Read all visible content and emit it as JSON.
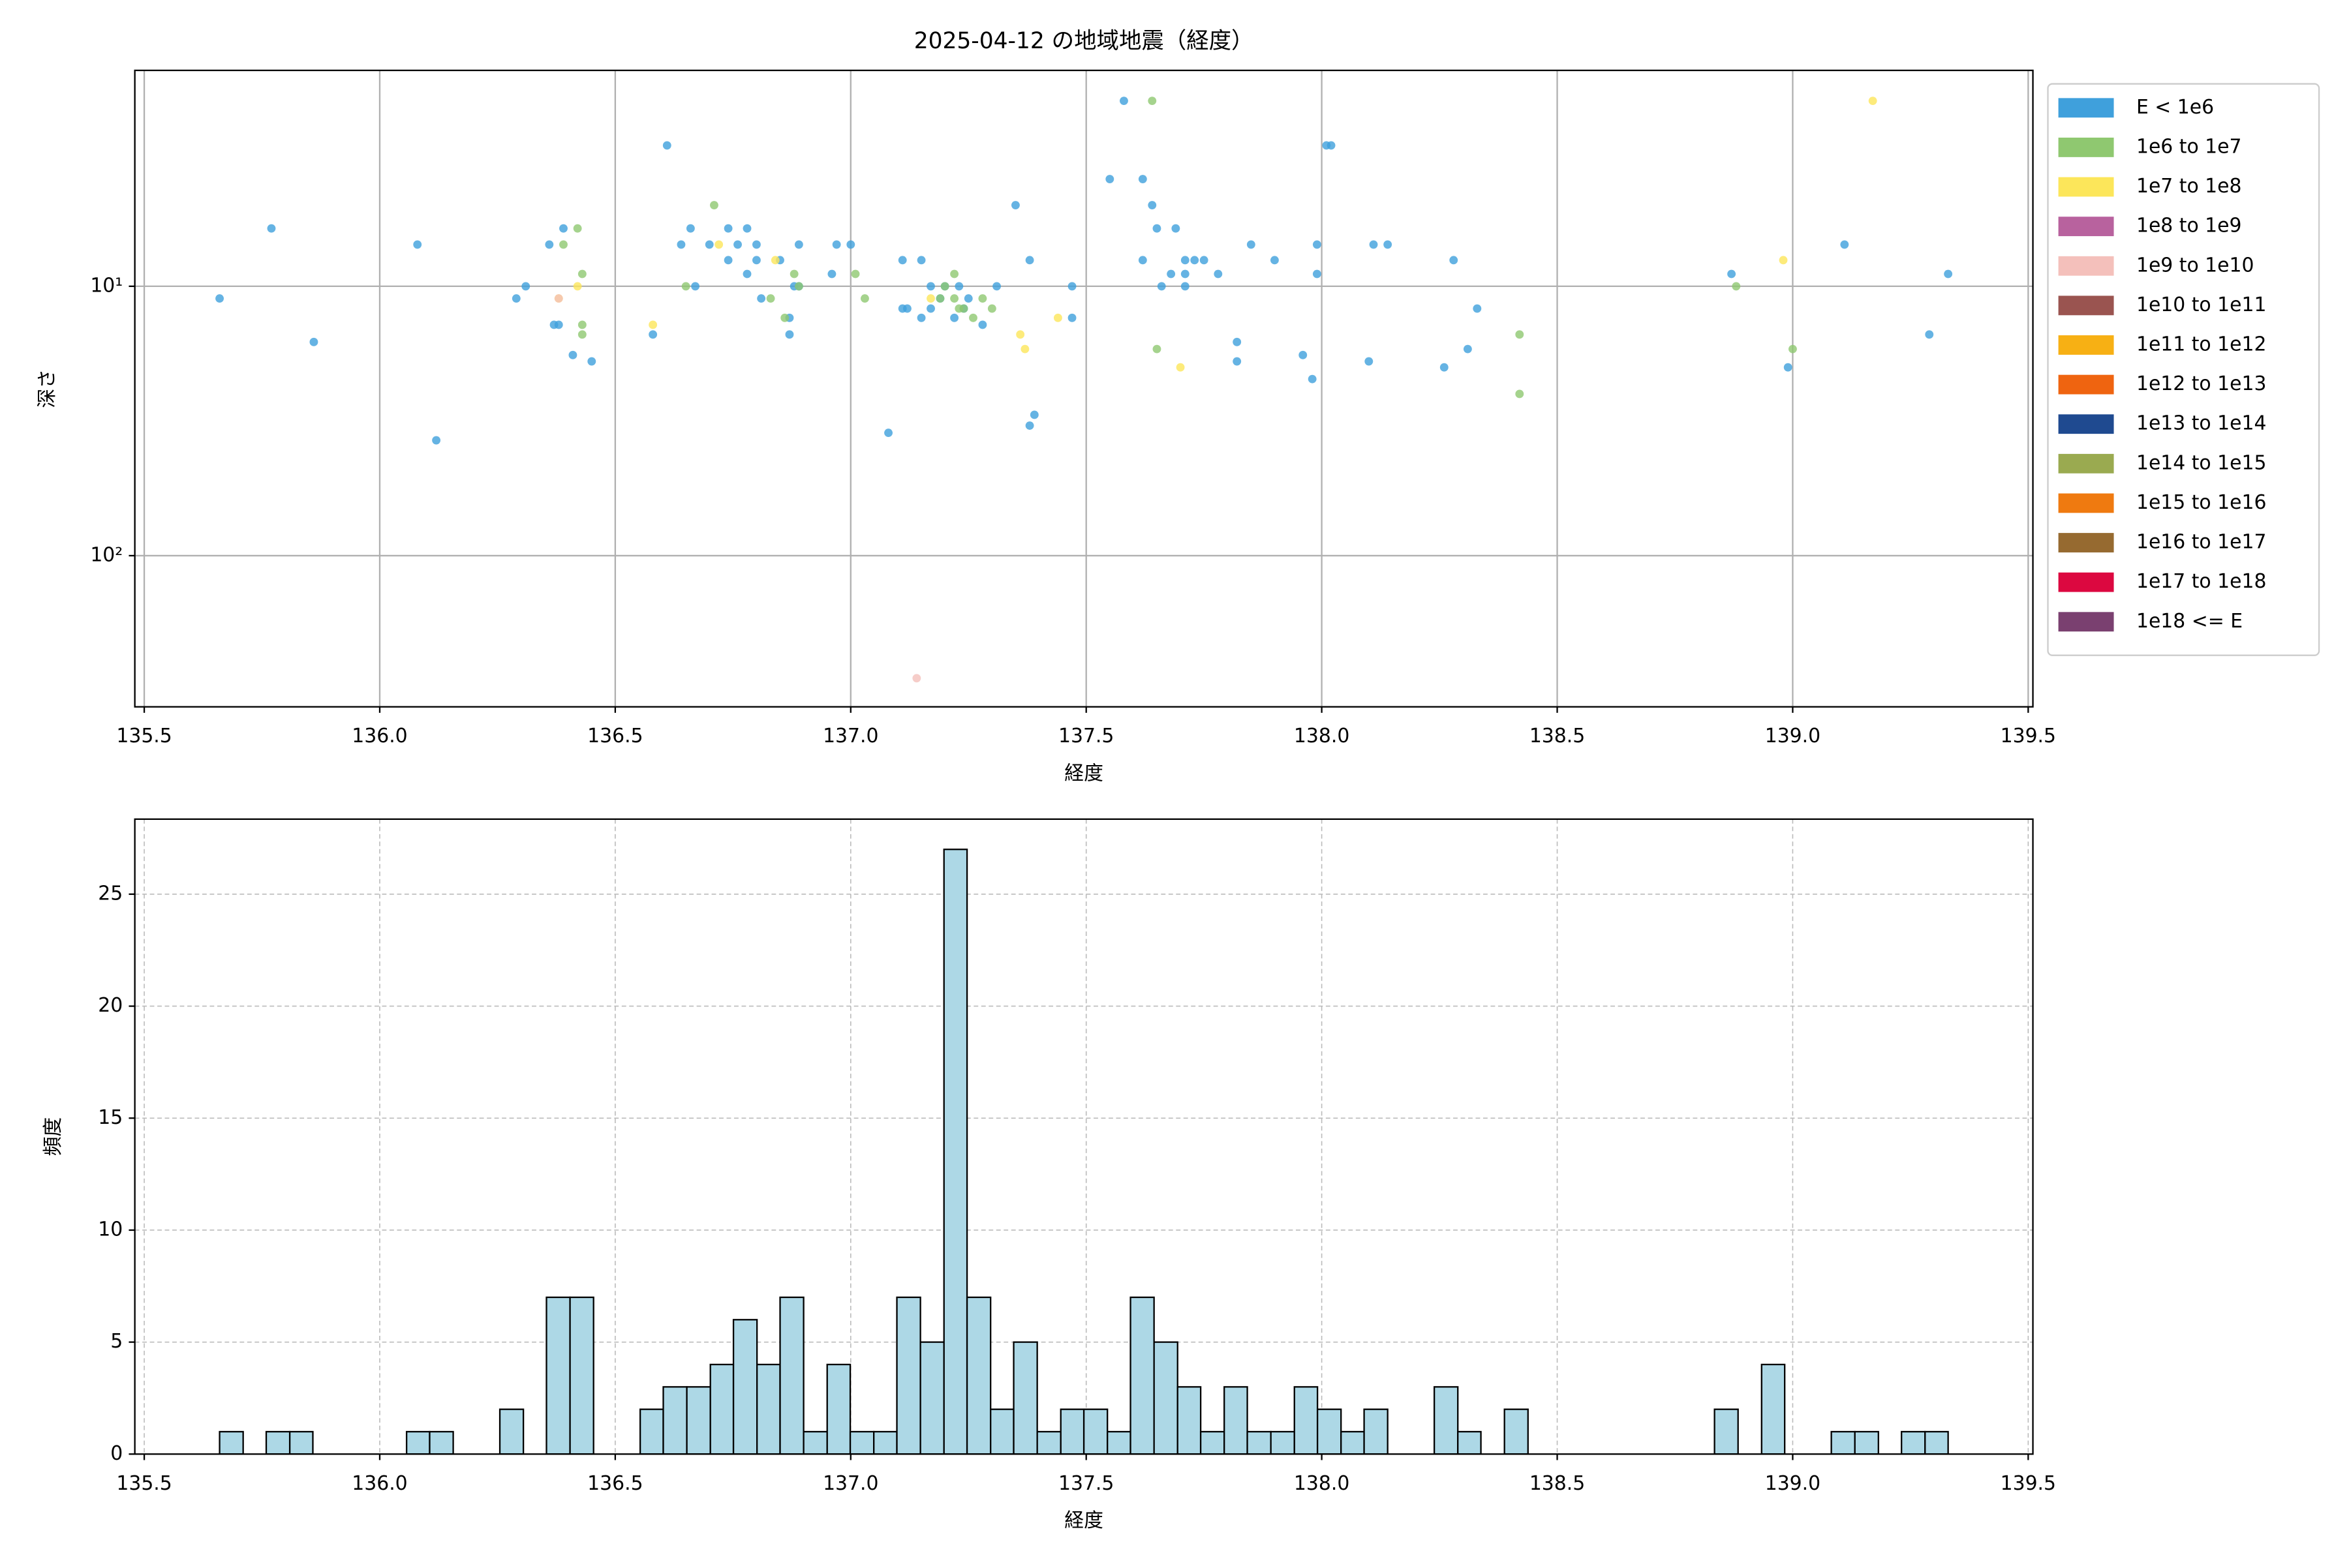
{
  "chart_data": [
    {
      "type": "scatter",
      "title": "2025-04-12 の地域地震（経度）",
      "x_label": "経度",
      "y_label": "深さ",
      "xlim": [
        135.48,
        139.51
      ],
      "xticks": [
        135.5,
        {
          "value": 136,
          "label": "136.0"
        },
        136.5,
        {
          "value": 137,
          "label": "137.0"
        },
        137.5,
        {
          "value": 138,
          "label": "138.0"
        },
        138.5,
        {
          "value": 139,
          "label": "139.0"
        },
        139.5
      ],
      "ylim": [
        1.58,
        364
      ],
      "y_scale": "log",
      "y_inverted": true,
      "yticks": [
        {
          "value": 10,
          "label": "10¹"
        },
        {
          "value": 100,
          "label": "10²"
        }
      ],
      "grid": true,
      "grid_linestyle": "solid",
      "legend": "outside-right",
      "series": [
        {
          "name": "E < 1e6",
          "color": "#3fa0dc",
          "x": [
            135.66,
            135.77,
            135.86,
            136.08,
            136.12,
            136.29,
            136.31,
            136.36,
            136.37,
            136.38,
            136.39,
            136.41,
            136.45,
            136.58,
            136.61,
            136.64,
            136.66,
            136.67,
            136.7,
            136.74,
            136.74,
            136.76,
            136.78,
            136.78,
            136.8,
            136.8,
            136.81,
            136.85,
            136.87,
            136.87,
            136.88,
            136.89,
            136.89,
            136.96,
            136.97,
            137.0,
            137.08,
            137.11,
            137.11,
            137.12,
            137.15,
            137.15,
            137.17,
            137.17,
            137.19,
            137.2,
            137.22,
            137.23,
            137.24,
            137.25,
            137.28,
            137.31,
            137.35,
            137.38,
            137.38,
            137.39,
            137.47,
            137.47,
            137.55,
            137.58,
            137.62,
            137.62,
            137.64,
            137.65,
            137.66,
            137.68,
            137.69,
            137.71,
            137.71,
            137.71,
            137.73,
            137.75,
            137.78,
            137.82,
            137.82,
            137.85,
            137.9,
            137.96,
            137.98,
            137.99,
            137.99,
            138.01,
            138.02,
            138.1,
            138.11,
            138.14,
            138.26,
            138.28,
            138.31,
            138.33,
            138.87,
            138.99,
            139.11,
            139.29,
            139.33
          ],
          "y": [
            11.1,
            6.1,
            16.1,
            7,
            37.3,
            11.1,
            10,
            7,
            13.9,
            13.9,
            6.1,
            18,
            19,
            15.1,
            3,
            7,
            6.1,
            10,
            7,
            6.1,
            8,
            7,
            6.1,
            9,
            7,
            8,
            11.1,
            8,
            13.1,
            15.1,
            10,
            7,
            10,
            9,
            7,
            7,
            35,
            8,
            12.1,
            12.1,
            8,
            13.1,
            10,
            12.1,
            11.1,
            10,
            13.1,
            10,
            12.1,
            11.1,
            13.9,
            10,
            5,
            8,
            32.9,
            30,
            10,
            13.1,
            4,
            2.05,
            4,
            8,
            5,
            6.1,
            10,
            9,
            6.1,
            8,
            9,
            10,
            8,
            8,
            9,
            16.1,
            19,
            7,
            8,
            18,
            22.1,
            9,
            7,
            3,
            3,
            19,
            7,
            7,
            20,
            8,
            17.1,
            12.1,
            9,
            20,
            7,
            15.1,
            9
          ]
        },
        {
          "name": "1e6 to 1e7",
          "color": "#8fc870",
          "x": [
            136.39,
            136.42,
            136.43,
            136.43,
            136.43,
            136.71,
            136.65,
            136.83,
            136.86,
            136.88,
            136.89,
            137.01,
            137.03,
            137.19,
            137.2,
            137.22,
            137.22,
            137.23,
            137.24,
            137.26,
            137.28,
            137.3,
            137.64,
            137.65,
            138.42,
            138.42,
            138.88,
            139.0
          ],
          "y": [
            7,
            6.1,
            9,
            13.9,
            15.1,
            5,
            10,
            11.1,
            13.1,
            9,
            10,
            9,
            11.1,
            11.1,
            10,
            9,
            11.1,
            12.1,
            12.1,
            13.1,
            11.1,
            12.1,
            2.05,
            17.1,
            15.1,
            25.1,
            10,
            17.1
          ]
        },
        {
          "name": "1e7 to 1e8",
          "color": "#fce65a",
          "x": [
            136.38,
            136.42,
            136.58,
            136.72,
            136.84,
            137.17,
            137.36,
            137.37,
            137.44,
            137.7,
            138.98,
            139.17
          ],
          "y": [
            11.1,
            10,
            13.9,
            7,
            8,
            11.1,
            15.1,
            17.1,
            13.1,
            20,
            8,
            2.05
          ]
        },
        {
          "name": "1e8 to 1e9",
          "color": "#b8629e",
          "x": [],
          "y": []
        },
        {
          "name": "1e9 to 1e10",
          "color": "#f4c0bb",
          "x": [
            136.38,
            137.14
          ],
          "y": [
            11.1,
            285
          ]
        },
        {
          "name": "1e10 to 1e11",
          "color": "#9a5450",
          "x": [],
          "y": []
        },
        {
          "name": "1e11 to 1e12",
          "color": "#f7b014",
          "x": [],
          "y": []
        },
        {
          "name": "1e12 to 1e13",
          "color": "#ef6410",
          "x": [],
          "y": []
        },
        {
          "name": "1e13 to 1e14",
          "color": "#1f4a90",
          "x": [],
          "y": []
        },
        {
          "name": "1e14 to 1e15",
          "color": "#9aaa50",
          "x": [],
          "y": []
        },
        {
          "name": "1e15 to 1e16",
          "color": "#ef7a10",
          "x": [],
          "y": []
        },
        {
          "name": "1e16 to 1e17",
          "color": "#966a30",
          "x": [],
          "y": []
        },
        {
          "name": "1e17 to 1e18",
          "color": "#dc0840",
          "x": [],
          "y": []
        },
        {
          "name": "1e18 <= E",
          "color": "#7a4070",
          "x": [],
          "y": []
        }
      ]
    },
    {
      "type": "histogram",
      "x_label": "経度",
      "y_label": "頻度",
      "color": "#add8e6",
      "edge_color": "#000000",
      "xlim": [
        135.48,
        139.51
      ],
      "xticks": [
        135.5,
        {
          "value": 136,
          "label": "136.0"
        },
        136.5,
        {
          "value": 137,
          "label": "137.0"
        },
        137.5,
        {
          "value": 138,
          "label": "138.0"
        },
        138.5,
        {
          "value": 139,
          "label": "139.0"
        },
        139.5
      ],
      "ylim": [
        0,
        28.35
      ],
      "yticks": [
        0,
        5,
        10,
        15,
        20,
        25
      ],
      "grid": true,
      "grid_linestyle": "dashed",
      "bins": [
        135.66,
        135.71,
        135.759,
        135.809,
        135.858,
        135.908,
        135.958,
        136.007,
        136.057,
        136.106,
        136.156,
        136.206,
        136.255,
        136.305,
        136.354,
        136.404,
        136.454,
        136.503,
        136.553,
        136.602,
        136.652,
        136.702,
        136.751,
        136.801,
        136.85,
        136.9,
        136.95,
        136.999,
        137.049,
        137.098,
        137.148,
        137.198,
        137.247,
        137.297,
        137.346,
        137.396,
        137.446,
        137.495,
        137.545,
        137.594,
        137.644,
        137.694,
        137.743,
        137.793,
        137.842,
        137.892,
        137.942,
        137.991,
        138.041,
        138.09,
        138.14,
        138.19,
        138.239,
        138.289,
        138.338,
        138.388,
        138.438,
        138.487,
        138.537,
        138.586,
        138.636,
        138.686,
        138.735,
        138.785,
        138.834,
        138.884,
        138.934,
        138.983,
        139.033,
        139.082,
        139.132,
        139.182,
        139.231,
        139.281,
        139.33
      ],
      "values": [
        1,
        0,
        1,
        1,
        0,
        0,
        0,
        0,
        1,
        1,
        0,
        0,
        2,
        0,
        7,
        7,
        0,
        0,
        2,
        3,
        3,
        4,
        6,
        4,
        7,
        1,
        4,
        1,
        1,
        7,
        5,
        27,
        7,
        2,
        5,
        1,
        2,
        2,
        1,
        7,
        5,
        3,
        1,
        3,
        1,
        1,
        3,
        2,
        1,
        2,
        0,
        0,
        3,
        1,
        0,
        2,
        0,
        0,
        0,
        0,
        0,
        0,
        0,
        0,
        2,
        0,
        4,
        0,
        0,
        1,
        1,
        0,
        1,
        1
      ]
    }
  ]
}
